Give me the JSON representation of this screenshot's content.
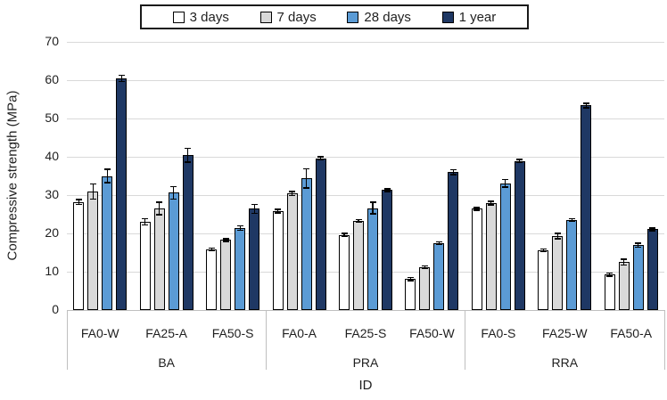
{
  "chart_data": {
    "type": "bar",
    "title": "",
    "xlabel": "ID",
    "ylabel": "Compressive strength (MPa)",
    "ylim": [
      0,
      70
    ],
    "yticks": [
      0,
      10,
      20,
      30,
      40,
      50,
      60,
      70
    ],
    "grid": true,
    "legend_position": "top-center",
    "groups": [
      {
        "label": "BA",
        "categories": [
          "FA0-W",
          "FA25-A",
          "FA50-S"
        ]
      },
      {
        "label": "PRA",
        "categories": [
          "FA0-A",
          "FA25-S",
          "FA50-W"
        ]
      },
      {
        "label": "RRA",
        "categories": [
          "FA0-S",
          "FA25-W",
          "FA50-A"
        ]
      }
    ],
    "series": [
      {
        "name": "3 days",
        "color": "#FFFFFF",
        "values": [
          28.2,
          23.0,
          15.8,
          25.8,
          19.6,
          8.1,
          26.4,
          15.6,
          9.2
        ],
        "errors": [
          0.6,
          0.8,
          0.2,
          0.5,
          0.2,
          0.4,
          0.4,
          0.3,
          0.4
        ]
      },
      {
        "name": "7 days",
        "color": "#D9D9D9",
        "values": [
          30.9,
          26.5,
          18.3,
          30.4,
          23.2,
          11.2,
          27.9,
          19.3,
          12.5
        ],
        "errors": [
          2.0,
          1.6,
          0.2,
          0.5,
          0.3,
          0.3,
          0.5,
          0.7,
          0.7
        ]
      },
      {
        "name": "28 days",
        "color": "#5B9BD5",
        "values": [
          35.0,
          30.6,
          21.4,
          34.4,
          26.6,
          17.5,
          33.1,
          23.5,
          16.9
        ],
        "errors": [
          1.7,
          1.6,
          0.6,
          2.5,
          1.5,
          0.2,
          1.0,
          0.2,
          0.5
        ]
      },
      {
        "name": "1 year",
        "color": "#1F3864",
        "values": [
          60.5,
          40.4,
          26.4,
          39.6,
          31.3,
          36.0,
          38.9,
          53.4,
          21.1
        ],
        "errors": [
          0.8,
          1.8,
          1.2,
          0.4,
          0.2,
          0.6,
          0.2,
          0.6,
          0.2
        ]
      }
    ],
    "style": {
      "bar_border_color": "#000000",
      "gridline_color": "#D9D9D9",
      "axis_line_color": "#BFBFBF",
      "error_bar_color": "#000000"
    }
  }
}
